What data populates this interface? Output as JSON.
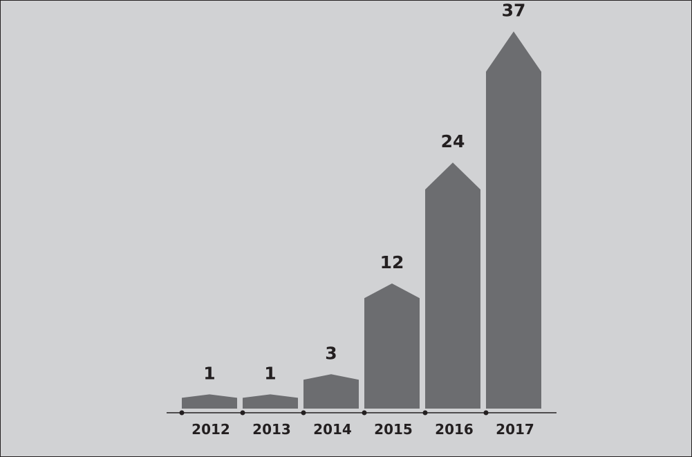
{
  "chart_data": {
    "type": "bar",
    "categories": [
      "2012",
      "2013",
      "2014",
      "2015",
      "2016",
      "2017"
    ],
    "values": [
      1,
      1,
      3,
      12,
      24,
      37
    ],
    "data_labels": [
      "1",
      "1",
      "3",
      "12",
      "24",
      "37"
    ],
    "title": "",
    "xlabel": "",
    "ylabel": "",
    "ylim": [
      0,
      40
    ],
    "grid": false,
    "legend": "none",
    "colors": {
      "background": "#d1d2d4",
      "border": "#231f20",
      "bar": "#6c6d70",
      "axis": "#231f20",
      "text": "#231f20"
    }
  }
}
